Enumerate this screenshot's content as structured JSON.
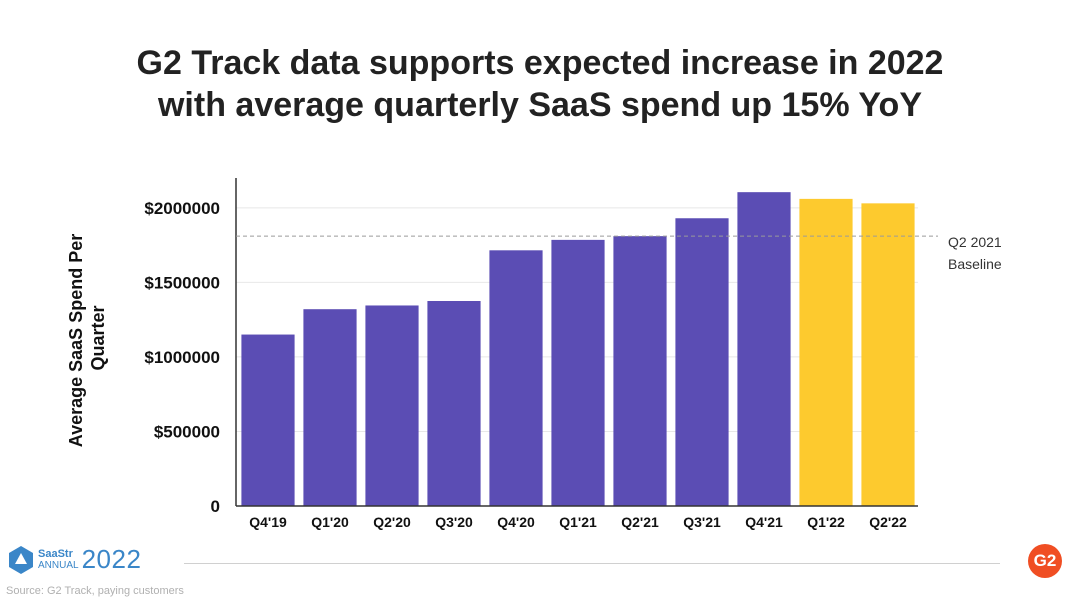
{
  "title": {
    "line1": "G2 Track data supports expected increase in 2022",
    "line2": "with average quarterly SaaS spend up 15% YoY"
  },
  "chart_data": {
    "type": "bar",
    "title": "G2 Track data supports expected increase in 2022 with average quarterly SaaS spend up 15% YoY",
    "xlabel": "",
    "ylabel": "Average SaaS Spend Per Quarter",
    "categories": [
      "Q4'19",
      "Q1'20",
      "Q2'20",
      "Q3'20",
      "Q4'20",
      "Q1'21",
      "Q2'21",
      "Q3'21",
      "Q4'21",
      "Q1'22",
      "Q2'22"
    ],
    "values": [
      1150000,
      1320000,
      1345000,
      1375000,
      1715000,
      1785000,
      1810000,
      1930000,
      2105000,
      2060000,
      2030000
    ],
    "bar_colors": [
      "#5b4db4",
      "#5b4db4",
      "#5b4db4",
      "#5b4db4",
      "#5b4db4",
      "#5b4db4",
      "#5b4db4",
      "#5b4db4",
      "#5b4db4",
      "#fdca2e",
      "#fdca2e"
    ],
    "ylim": [
      0,
      2200000
    ],
    "y_ticks": [
      0,
      500000,
      1000000,
      1500000,
      2000000
    ],
    "y_tick_labels": [
      "0",
      "$500000",
      "$1000000",
      "$1500000",
      "$2000000"
    ],
    "grid": true,
    "baseline": {
      "value": 1810000,
      "label_line1": "Q2 2021",
      "label_line2": "Baseline",
      "style": "dashed"
    },
    "colors": {
      "actual": "#5b4db4",
      "projected": "#fdca2e",
      "grid": "#e8e8e8",
      "axis": "#333333"
    }
  },
  "footer": {
    "saastr_name": "SaaStr",
    "saastr_annual": "ANNUAL",
    "saastr_year": "2022",
    "source": "Source: G2 Track, paying customers",
    "g2_logo": "G2"
  }
}
